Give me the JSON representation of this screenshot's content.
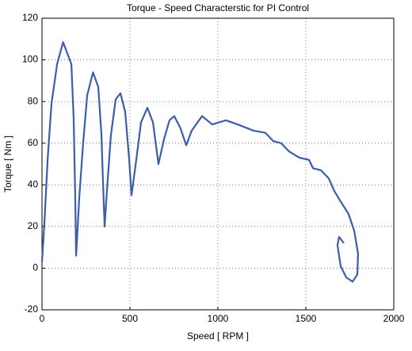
{
  "chart_data": {
    "type": "line",
    "title": "Torque - Speed Characterstic for PI Control",
    "xlabel": "Speed [ RPM ]",
    "ylabel": "Torque [ Nm ]",
    "xlim": [
      0,
      2000
    ],
    "ylim": [
      -20,
      120
    ],
    "xticks": [
      0,
      500,
      1000,
      1500,
      2000
    ],
    "yticks": [
      -20,
      0,
      20,
      40,
      60,
      80,
      100,
      120
    ],
    "grid": true,
    "series": [
      {
        "color": "#3a5ea8",
        "x": [
          0,
          14,
          32,
          54,
          86,
          120,
          167,
          180,
          189,
          194,
          212,
          234,
          257,
          290,
          320,
          338,
          347,
          356,
          369,
          392,
          419,
          446,
          473,
          495,
          509,
          536,
          563,
          599,
          631,
          662,
          694,
          725,
          752,
          788,
          820,
          851,
          910,
          968,
          1045,
          1113,
          1203,
          1270,
          1315,
          1360,
          1405,
          1464,
          1518,
          1541,
          1586,
          1631,
          1662,
          1698,
          1743,
          1775,
          1797,
          1793,
          1766,
          1730,
          1698,
          1680,
          1689,
          1716
        ],
        "values": [
          3,
          22,
          52,
          79,
          98,
          108.5,
          98,
          72,
          34,
          6,
          34,
          60,
          83,
          94,
          87,
          64,
          41,
          20,
          37,
          64,
          81,
          84,
          75,
          53,
          35,
          52,
          70,
          77,
          70,
          50,
          62,
          71,
          73,
          67,
          59,
          66,
          73,
          69,
          71,
          69,
          66,
          65,
          61,
          60,
          56,
          53,
          52,
          48,
          47,
          43,
          37,
          32,
          26,
          18,
          7,
          -3,
          -6.5,
          -4.5,
          1,
          11,
          15,
          12
        ]
      }
    ]
  }
}
